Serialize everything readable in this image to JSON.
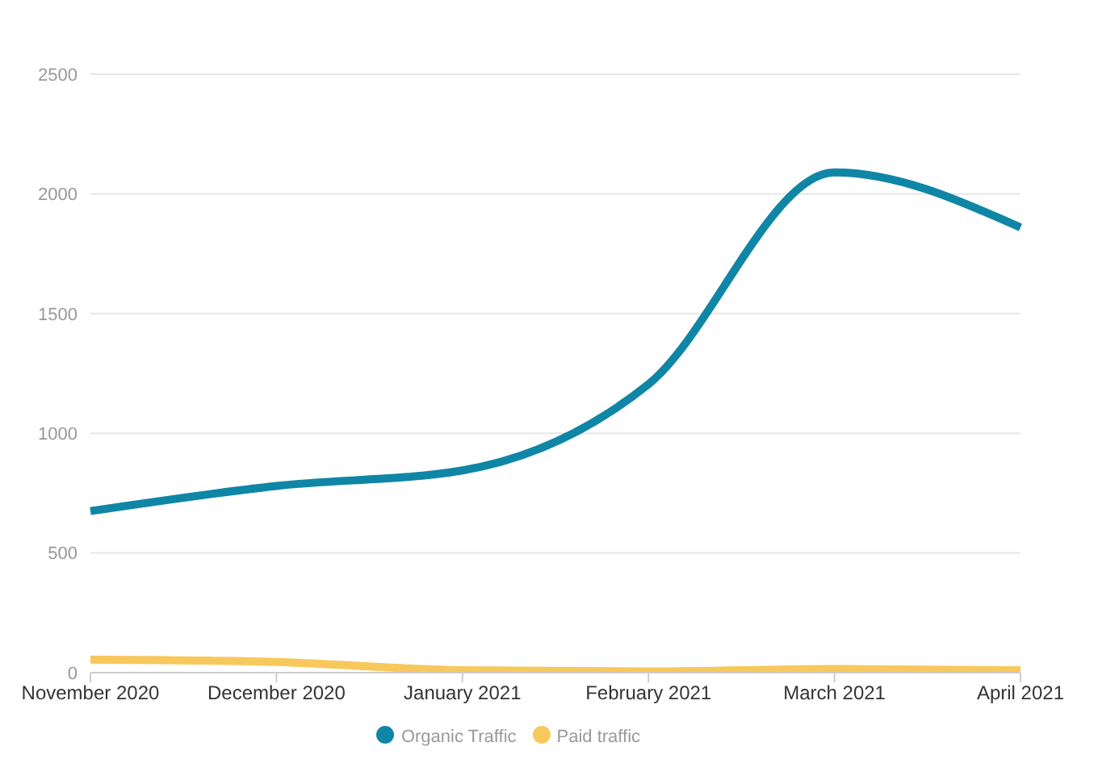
{
  "chart_data": {
    "type": "line",
    "categories": [
      "November 2020",
      "December 2020",
      "January 2021",
      "February 2021",
      "March 2021",
      "April 2021"
    ],
    "series": [
      {
        "name": "Organic Traffic",
        "color": "#0f86a6",
        "values": [
          675,
          780,
          845,
          1205,
          2090,
          1860
        ]
      },
      {
        "name": "Paid traffic",
        "color": "#f7c85c",
        "values": [
          55,
          45,
          10,
          5,
          15,
          10
        ]
      }
    ],
    "ylim": [
      0,
      2500
    ],
    "yticks": [
      0,
      500,
      1000,
      1500,
      2000,
      2500
    ],
    "grid": "y",
    "legend": "bottom",
    "marker": "none",
    "line_style": "solid"
  }
}
